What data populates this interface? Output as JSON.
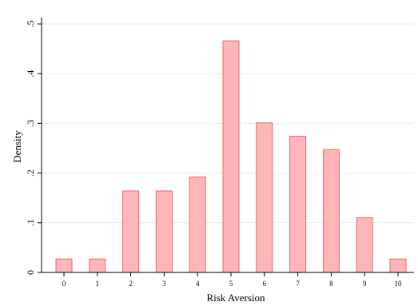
{
  "chart_data": {
    "type": "bar",
    "categories": [
      "0",
      "1",
      "2",
      "3",
      "4",
      "5",
      "6",
      "7",
      "8",
      "9",
      "10"
    ],
    "values": [
      0.027,
      0.027,
      0.164,
      0.164,
      0.192,
      0.466,
      0.301,
      0.274,
      0.247,
      0.11,
      0.027
    ],
    "xlabel": "Risk Aversion",
    "ylabel": "Density",
    "ylim": [
      0,
      0.5
    ],
    "yticks": [
      0,
      0.1,
      0.2,
      0.3,
      0.4,
      0.5
    ],
    "ytick_labels": [
      "0",
      ".1",
      ".2",
      ".3",
      ".4",
      ".5"
    ],
    "grid": true,
    "colors": {
      "bar_fill": "#ffb6b9",
      "bar_edge": "#f2646b",
      "grid": "#e6ecef"
    }
  }
}
